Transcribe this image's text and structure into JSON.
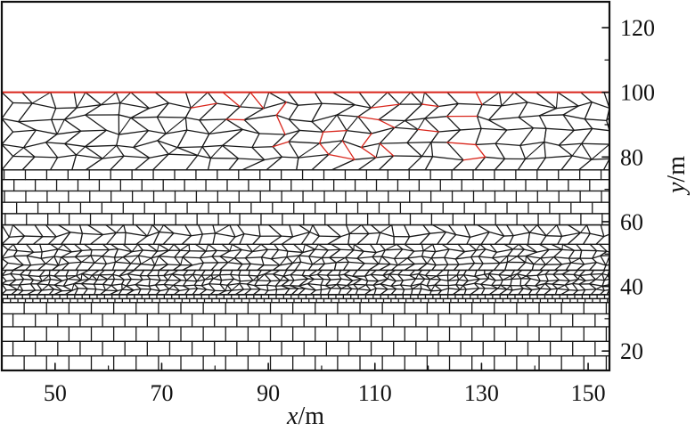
{
  "figure": {
    "x_label_var": "x",
    "x_label_unit": "/m",
    "y_label_var": "y",
    "y_label_unit": "/m",
    "colors": {
      "mesh": "#1a1a1a",
      "failure": "#d9261c",
      "frame": "#111111",
      "background": "#ffffff"
    }
  },
  "chart_data": {
    "type": "diagram",
    "xlim": [
      40,
      154
    ],
    "ylim": [
      14,
      128
    ],
    "x_ticks": [
      50,
      70,
      90,
      110,
      130,
      150
    ],
    "y_ticks": [
      20,
      40,
      60,
      80,
      100,
      120
    ],
    "x_tick_labels": [
      "50",
      "70",
      "90",
      "110",
      "130",
      "150"
    ],
    "y_tick_labels": [
      "20",
      "40",
      "60",
      "80",
      "100",
      "120"
    ],
    "y_axis_side": "right",
    "layers": [
      {
        "kind": "blocks",
        "y_bottom": 14,
        "y_top": 35,
        "block_w": 4.2,
        "block_h": 4.2,
        "rows": [
          14,
          18.5,
          23,
          27.5,
          31.5,
          35
        ]
      },
      {
        "kind": "thin-blocks",
        "y_bottom": 35,
        "y_top": 37.5,
        "block_w": 1.4,
        "block_h": 1.2
      },
      {
        "kind": "voronoi",
        "y_bottom": 37.5,
        "y_top": 45,
        "cell": 1.7
      },
      {
        "kind": "voronoi",
        "y_bottom": 45,
        "y_top": 53,
        "cell": 2.3
      },
      {
        "kind": "voronoi",
        "y_bottom": 53,
        "y_top": 59,
        "cell": 2.8
      },
      {
        "kind": "blocks",
        "y_bottom": 59,
        "y_top": 76,
        "block_w": 4.0,
        "block_h": 3.4,
        "rows": [
          59,
          62.5,
          66,
          69.5,
          73,
          76
        ]
      },
      {
        "kind": "voronoi",
        "y_bottom": 76,
        "y_top": 100,
        "cell": 4.2
      }
    ],
    "failure_region": {
      "x_min": 75,
      "x_max": 130,
      "y_min": 76,
      "y_max": 100,
      "top_boundary_y": 100
    }
  }
}
